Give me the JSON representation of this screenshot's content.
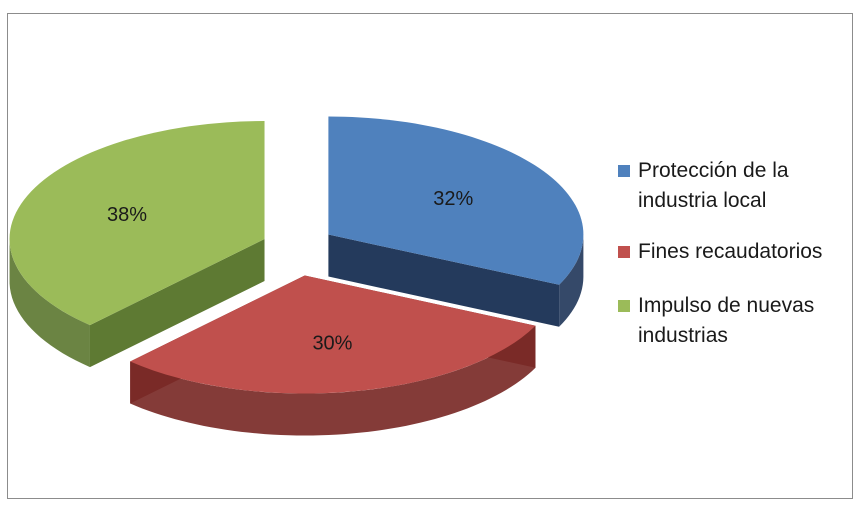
{
  "chart_data": {
    "type": "pie",
    "title": "",
    "slices": [
      {
        "label": "Protección de la industria local",
        "value": 32,
        "data_label": "32%",
        "color": "#4F81BD"
      },
      {
        "label": "Fines recaudatorios",
        "value": 30,
        "data_label": "30%",
        "color": "#C0504D"
      },
      {
        "label": "Impulso de nuevas industrias",
        "value": 38,
        "data_label": "38%",
        "color": "#9BBB59"
      }
    ],
    "legend_position": "right",
    "style": "3d-exploded"
  },
  "legend": {
    "items": [
      {
        "line1": "Protección de la",
        "line2": "industria local"
      },
      {
        "line1": "Fines recaudatorios",
        "line2": ""
      },
      {
        "line1": "Impulso de nuevas",
        "line2": "industrias"
      }
    ]
  },
  "colors": {
    "blue": "#4F81BD",
    "blue_side": "#243A5C",
    "red": "#C0504D",
    "red_side": "#7A2A27",
    "green": "#9BBB59",
    "green_side": "#5E7A33"
  }
}
